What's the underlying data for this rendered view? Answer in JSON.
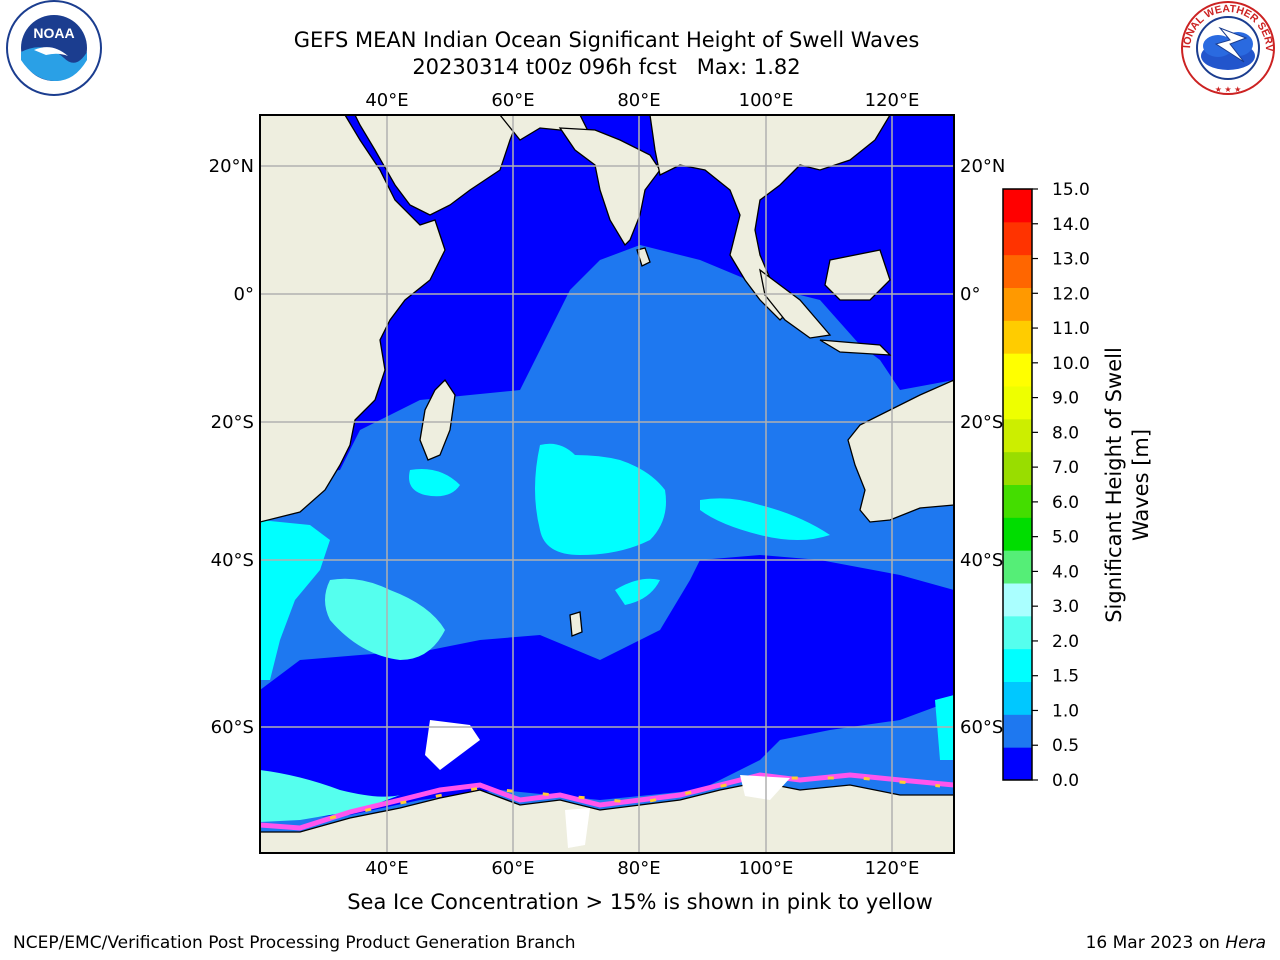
{
  "header": {
    "title_line1": "GEFS MEAN Indian Ocean Significant Height of Swell Waves",
    "title_line2": "20230314 t00z 096h fcst   Max: 1.82"
  },
  "logos": {
    "noaa_text": "NOAA",
    "nws_text": "NATIONAL WEATHER SERVICE"
  },
  "map": {
    "lon_ticks": [
      "40°E",
      "60°E",
      "80°E",
      "100°E",
      "120°E"
    ],
    "lat_ticks_left": [
      "20°N",
      "0°",
      "20°S",
      "40°S",
      "60°S"
    ],
    "lat_ticks_right": [
      "20°N",
      "0°",
      "20°S",
      "40°S",
      "60°S"
    ],
    "colors": {
      "land": "#eeeedf",
      "deep_blue": "#0000ff",
      "mid_blue": "#1e78f0",
      "cyan": "#00ffff",
      "light_cyan": "#55ffee",
      "ice_pink": "#ff55ee",
      "ice_yellow": "#ffcc33",
      "grid": "#b0b0b0"
    }
  },
  "colorbar": {
    "label_line1": "Significant Height of Swell",
    "label_line2": "Waves [m]",
    "ticks": [
      "0.0",
      "0.5",
      "1.0",
      "1.5",
      "2.0",
      "3.0",
      "4.0",
      "5.0",
      "6.0",
      "7.0",
      "8.0",
      "9.0",
      "10.0",
      "11.0",
      "12.0",
      "13.0",
      "14.0",
      "15.0"
    ],
    "colors": [
      "#0000ff",
      "#1e78f0",
      "#00c8ff",
      "#00ffff",
      "#55ffee",
      "#aaffff",
      "#55ee77",
      "#00dd00",
      "#44dd00",
      "#99dd00",
      "#ccee00",
      "#eeff00",
      "#ffff00",
      "#ffcc00",
      "#ff9900",
      "#ff6600",
      "#ff3300",
      "#ff0000"
    ]
  },
  "caption": "Sea Ice Concentration > 15% is shown in pink to yellow",
  "footer": {
    "left": "NCEP/EMC/Verification Post Processing Product Generation Branch",
    "right_prefix": "16 Mar 2023 on ",
    "right_machine": "Hera"
  }
}
